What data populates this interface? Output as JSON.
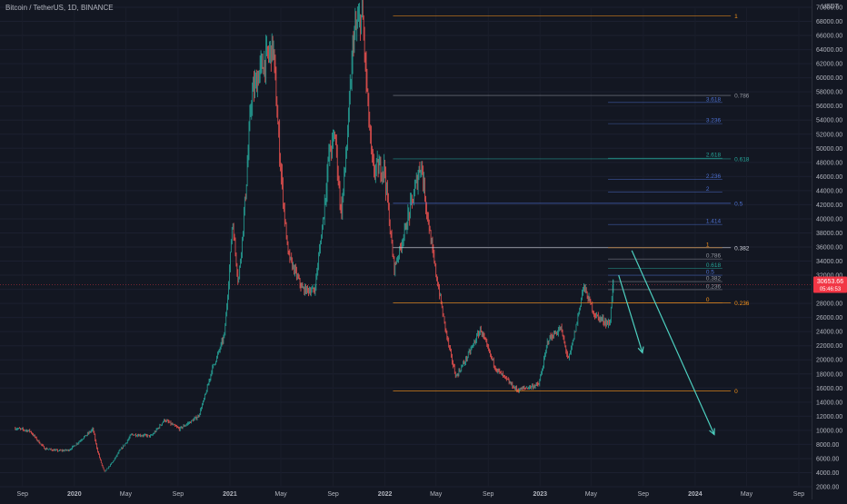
{
  "header": {
    "symbol": "Bitcoin / TetherUS, 1D, BINANCE",
    "currency": "USDT"
  },
  "current_price": {
    "value": "30653.66",
    "countdown": "05:46:53",
    "color": "#f23645"
  },
  "colors": {
    "background": "#131722",
    "up_candle": "#26a69a",
    "down_candle": "#ef5350",
    "fib_main": "#9598a1",
    "fib_extension": "#4c6fcf",
    "fib_orange": "#f7931a",
    "fib_green": "#26a69a",
    "arrow": "#4dd0c0"
  },
  "chart_data": {
    "type": "candlestick",
    "axis_y": {
      "min": 2000,
      "max": 70000,
      "step": 2000,
      "position": "right"
    },
    "x_ticks": [
      "Sep",
      "2020",
      "May",
      "Sep",
      "2021",
      "May",
      "Sep",
      "2022",
      "May",
      "Sep",
      "2023",
      "May",
      "Sep",
      "2024",
      "May",
      "Sep"
    ],
    "price_series": [
      [
        "2019-08-15",
        10300
      ],
      [
        "2019-09-20",
        9900
      ],
      [
        "2019-10-25",
        7400
      ],
      [
        "2019-11-25",
        7100
      ],
      [
        "2019-12-20",
        7200
      ],
      [
        "2020-01-20",
        8800
      ],
      [
        "2020-02-15",
        10200
      ],
      [
        "2020-03-13",
        4100
      ],
      [
        "2020-04-15",
        6900
      ],
      [
        "2020-05-15",
        9400
      ],
      [
        "2020-07-01",
        9200
      ],
      [
        "2020-08-01",
        11500
      ],
      [
        "2020-09-05",
        10200
      ],
      [
        "2020-10-20",
        12000
      ],
      [
        "2020-11-20",
        18500
      ],
      [
        "2020-12-20",
        23500
      ],
      [
        "2021-01-08",
        40000
      ],
      [
        "2021-01-22",
        31000
      ],
      [
        "2021-02-21",
        57000
      ],
      [
        "2021-03-13",
        61000
      ],
      [
        "2021-04-14",
        64500
      ],
      [
        "2021-05-19",
        35000
      ],
      [
        "2021-06-22",
        30000
      ],
      [
        "2021-07-20",
        29800
      ],
      [
        "2021-08-23",
        49000
      ],
      [
        "2021-09-07",
        52000
      ],
      [
        "2021-09-21",
        40600
      ],
      [
        "2021-10-20",
        66000
      ],
      [
        "2021-11-10",
        69000
      ],
      [
        "2021-12-04",
        47000
      ],
      [
        "2022-01-01",
        47300
      ],
      [
        "2022-01-24",
        33000
      ],
      [
        "2022-03-28",
        48200
      ],
      [
        "2022-05-12",
        28800
      ],
      [
        "2022-06-18",
        17600
      ],
      [
        "2022-08-15",
        24400
      ],
      [
        "2022-09-20",
        18800
      ],
      [
        "2022-11-09",
        15700
      ],
      [
        "2022-12-30",
        16500
      ],
      [
        "2023-01-20",
        22800
      ],
      [
        "2023-02-20",
        24500
      ],
      [
        "2023-03-10",
        20000
      ],
      [
        "2023-04-14",
        30500
      ],
      [
        "2023-05-12",
        26300
      ],
      [
        "2023-06-15",
        25000
      ],
      [
        "2023-06-22",
        30653
      ]
    ],
    "fib_left": {
      "label_x": "2022-12-20",
      "levels": [
        {
          "ratio": "0",
          "price": 15600
        },
        {
          "ratio": "0.236",
          "price": 28100
        },
        {
          "ratio": "0.382",
          "price": 35900
        },
        {
          "ratio": "0.5",
          "price": 42200
        },
        {
          "ratio": "0.618",
          "price": 48500
        },
        {
          "ratio": "0.786",
          "price": 57500
        },
        {
          "ratio": "1",
          "price": 68800
        }
      ]
    },
    "fib_right": {
      "levels": [
        {
          "ratio": "0",
          "price": 28100
        },
        {
          "ratio": "0.236",
          "price": 29950
        },
        {
          "ratio": "0.382",
          "price": 31100
        },
        {
          "ratio": "0.5",
          "price": 32000
        },
        {
          "ratio": "0.618",
          "price": 33000
        },
        {
          "ratio": "0.786",
          "price": 34300
        },
        {
          "ratio": "1",
          "price": 35900
        },
        {
          "ratio": "1.414",
          "price": 39200
        },
        {
          "ratio": "2",
          "price": 43800
        },
        {
          "ratio": "2.236",
          "price": 45600
        },
        {
          "ratio": "2.618",
          "price": 48600
        },
        {
          "ratio": "3.236",
          "price": 53500
        },
        {
          "ratio": "3.618",
          "price": 56500
        }
      ]
    },
    "projections": [
      {
        "from": [
          "2023-07-05",
          32000
        ],
        "to": [
          "2023-08-30",
          21000
        ]
      },
      {
        "from": [
          "2023-08-05",
          35500
        ],
        "to": [
          "2024-02-15",
          9400
        ]
      }
    ]
  }
}
